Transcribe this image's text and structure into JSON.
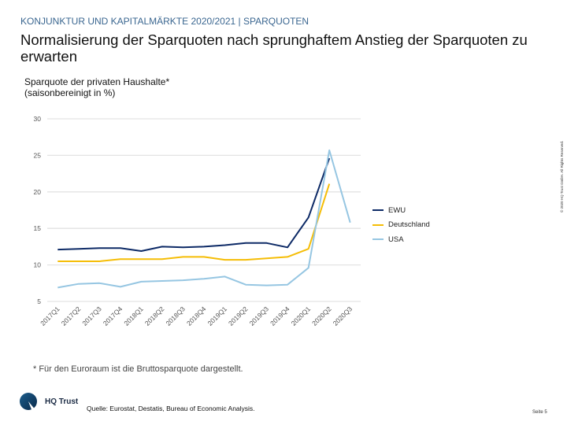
{
  "header": {
    "kicker": "KONJUNKTUR UND KAPITALMÄRKTE 2020/2021 | SPARQUOTEN",
    "title": "Normalisierung der Sparquoten nach sprunghaftem Anstieg der Sparquoten zu erwarten"
  },
  "chart_data": {
    "type": "line",
    "title": "Sparquote der privaten Haushalte* (saisonbereinigt in %)",
    "title_lines": [
      "Sparquote der privaten Haushalte*",
      "(saisonbereinigt in %)"
    ],
    "categories": [
      "2017Q1",
      "2017Q2",
      "2017Q3",
      "2017Q4",
      "2018Q1",
      "2018Q2",
      "2018Q3",
      "2018Q4",
      "2019Q1",
      "2019Q2",
      "2019Q3",
      "2019Q4",
      "2020Q1",
      "2020Q2",
      "2020Q3"
    ],
    "ylim": [
      5,
      30
    ],
    "yticks": [
      5,
      10,
      15,
      20,
      25,
      30
    ],
    "grid": true,
    "legend_position": "right",
    "series": [
      {
        "name": "EWU",
        "color": "#0d2a66",
        "values": [
          12.1,
          12.2,
          12.3,
          12.3,
          11.9,
          12.5,
          12.4,
          12.5,
          12.7,
          13.0,
          13.0,
          12.4,
          16.5,
          24.6,
          null
        ]
      },
      {
        "name": "Deutschland",
        "color": "#f5bd06",
        "values": [
          10.5,
          10.5,
          10.5,
          10.8,
          10.8,
          10.8,
          11.1,
          11.1,
          10.7,
          10.7,
          10.9,
          11.1,
          12.2,
          21.1,
          null
        ]
      },
      {
        "name": "USA",
        "color": "#96c6e2",
        "values": [
          6.9,
          7.4,
          7.5,
          7.0,
          7.7,
          7.8,
          7.9,
          8.1,
          8.4,
          7.3,
          7.2,
          7.3,
          9.6,
          25.7,
          15.8
        ]
      }
    ]
  },
  "footer": {
    "note": "* Für den Euroraum ist die Bruttosparquote dargestellt.",
    "source": "Quelle: Eurostat, Destatis, Bureau of Economic Analysis.",
    "page": "Seite 5",
    "logo_text": "HQ Trust",
    "copyright": "© 2020 HQ Trust GmbH. All Rights Reserved."
  }
}
